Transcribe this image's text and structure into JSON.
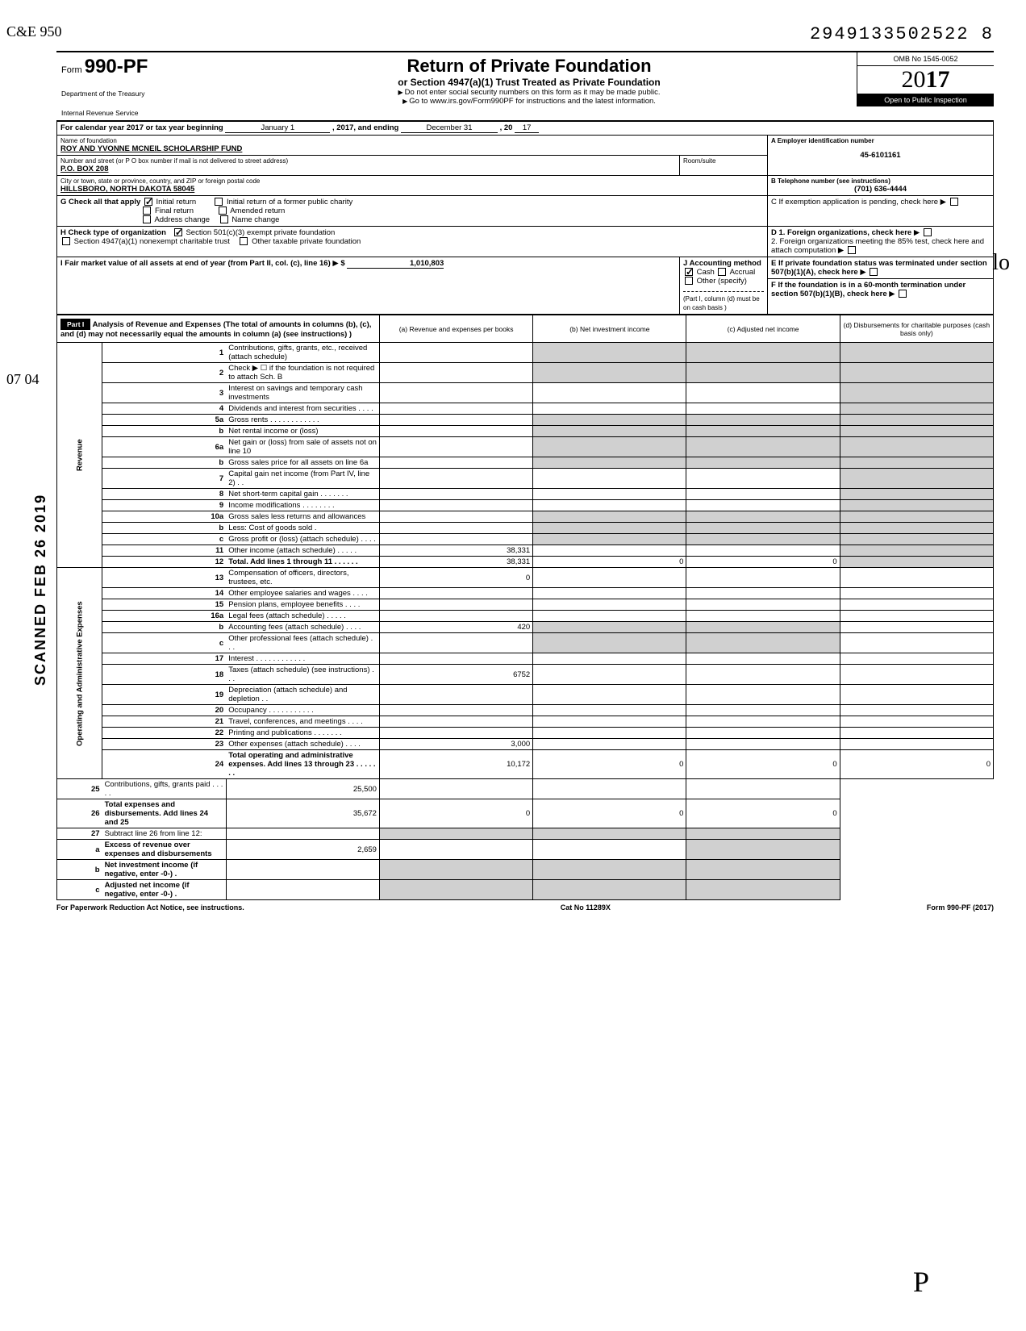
{
  "annotations": {
    "top_left": "C&E\n950",
    "side": "07\n04",
    "side_text": "SCANNED FEB 26 2019",
    "sig_bottom": "P",
    "sig_right": "lo"
  },
  "doc_id": "2949133502522 8",
  "header": {
    "form_prefix": "Form",
    "form_number": "990-PF",
    "dept1": "Department of the Treasury",
    "dept2": "Internal Revenue Service",
    "title": "Return of Private Foundation",
    "subtitle": "or Section 4947(a)(1) Trust Treated as Private Foundation",
    "note1": "Do not enter social security numbers on this form as it may be made public.",
    "note2": "Go to www.irs.gov/Form990PF for instructions and the latest information.",
    "omb": "OMB No 1545-0052",
    "year_prefix": "20",
    "year_suffix": "17",
    "open": "Open to Public Inspection"
  },
  "cal_line": {
    "prefix": "For calendar year 2017 or tax year beginning",
    "begin": "January 1",
    "mid": ", 2017, and ending",
    "end": "December 31",
    "yy_prefix": ", 20",
    "yy": "17"
  },
  "info": {
    "name_label": "Name of foundation",
    "name": "ROY AND YVONNE MCNEIL SCHOLARSHIP FUND",
    "ein_label": "A  Employer identification number",
    "ein": "45-6101161",
    "street_label": "Number and street (or P O box number if mail is not delivered to street address)",
    "street": "P.O. BOX 208",
    "room_label": "Room/suite",
    "phone_label": "B  Telephone number (see instructions)",
    "phone": "(701) 636-4444",
    "city_label": "City or town, state or province, country, and ZIP or foreign postal code",
    "city": "HILLSBORO, NORTH DAKOTA 58045",
    "c_label": "C  If exemption application is pending, check here"
  },
  "g": {
    "label": "G   Check all that apply",
    "opts": [
      "Initial return",
      "Final return",
      "Address change",
      "Initial return of a former public charity",
      "Amended return",
      "Name change"
    ]
  },
  "h": {
    "label": "H   Check type of organization",
    "opt1": "Section 501(c)(3) exempt private foundation",
    "opt2": "Section 4947(a)(1) nonexempt charitable trust",
    "opt3": "Other taxable private foundation"
  },
  "i": {
    "label": "I    Fair market value of all assets at end of year (from Part II, col. (c), line 16)",
    "arrow": "$",
    "value": "1,010,803"
  },
  "j": {
    "label": "J   Accounting method",
    "opt1": "Cash",
    "opt2": "Accrual",
    "opt3": "Other (specify)",
    "note": "(Part I, column (d) must be on cash basis )"
  },
  "d": {
    "d1": "D  1. Foreign organizations, check here",
    "d2": "2. Foreign organizations meeting the 85% test, check here and attach computation"
  },
  "e": {
    "label": "E   If private foundation status was terminated under section 507(b)(1)(A), check here"
  },
  "f": {
    "label": "F   If the foundation is in a 60-month termination under section 507(b)(1)(B), check here"
  },
  "part1": {
    "header": "Part I",
    "desc": "Analysis of Revenue and Expenses (The total of amounts in columns (b), (c), and (d) may not necessarily equal the amounts in column (a) (see instructions) )",
    "col_a": "(a) Revenue and expenses per books",
    "col_b": "(b) Net investment income",
    "col_c": "(c) Adjusted net income",
    "col_d": "(d) Disbursements for charitable purposes (cash basis only)"
  },
  "sections": {
    "revenue": "Revenue",
    "opexp": "Operating and Administrative Expenses"
  },
  "rows": [
    {
      "n": "1",
      "d": "Contributions, gifts, grants, etc., received (attach schedule)"
    },
    {
      "n": "2",
      "d": "Check ▶ ☐ if the foundation is not required to attach Sch. B"
    },
    {
      "n": "3",
      "d": "Interest on savings and temporary cash investments"
    },
    {
      "n": "4",
      "d": "Dividends and interest from securities   .   .   .   ."
    },
    {
      "n": "5a",
      "d": "Gross rents  .   .   .   .   .   .   .   .   .   .   .   ."
    },
    {
      "n": "b",
      "d": "Net rental income or (loss)"
    },
    {
      "n": "6a",
      "d": "Net gain or (loss) from sale of assets not on line 10"
    },
    {
      "n": "b",
      "d": "Gross sales price for all assets on line 6a"
    },
    {
      "n": "7",
      "d": "Capital gain net income (from Part IV, line 2)   .   ."
    },
    {
      "n": "8",
      "d": "Net short-term capital gain  .   .   .   .   .   .   ."
    },
    {
      "n": "9",
      "d": "Income modifications   .   .   .   .   .   .   .   ."
    },
    {
      "n": "10a",
      "d": "Gross sales less returns and allowances"
    },
    {
      "n": "b",
      "d": "Less: Cost of goods sold   ."
    },
    {
      "n": "c",
      "d": "Gross profit or (loss) (attach schedule)   .   .   .   ."
    },
    {
      "n": "11",
      "d": "Other income (attach schedule)   .   .   .   .   .",
      "a": "38,331"
    },
    {
      "n": "12",
      "d": "Total. Add lines 1 through 11  .   .   .   .   .   .",
      "a": "38,331",
      "b": "0",
      "c": "0",
      "bold": true
    },
    {
      "n": "13",
      "d": "Compensation of officers, directors, trustees, etc.",
      "a": "0"
    },
    {
      "n": "14",
      "d": "Other employee salaries and wages  .   .   .   ."
    },
    {
      "n": "15",
      "d": "Pension plans, employee benefits   .   .   .   ."
    },
    {
      "n": "16a",
      "d": "Legal fees (attach schedule)   .   .   .   .   ."
    },
    {
      "n": "b",
      "d": "Accounting fees (attach schedule)   .   .   .   .",
      "a": "420"
    },
    {
      "n": "c",
      "d": "Other professional fees (attach schedule)  .   .   ."
    },
    {
      "n": "17",
      "d": "Interest   .   .   .   .   .   .   .   .   .   .   .   ."
    },
    {
      "n": "18",
      "d": "Taxes (attach schedule) (see instructions)   .   .   .",
      "a": "6752"
    },
    {
      "n": "19",
      "d": "Depreciation (attach schedule) and depletion  .   ."
    },
    {
      "n": "20",
      "d": "Occupancy  .   .   .   .   .   .   .   .   .   .   ."
    },
    {
      "n": "21",
      "d": "Travel, conferences, and meetings   .   .   .   ."
    },
    {
      "n": "22",
      "d": "Printing and publications   .   .   .   .   .   .   ."
    },
    {
      "n": "23",
      "d": "Other expenses (attach schedule)   .   .   .   .",
      "a": "3,000"
    },
    {
      "n": "24",
      "d": "Total operating and administrative expenses. Add lines 13 through 23  .   .   .   .   .   .   .",
      "a": "10,172",
      "b": "0",
      "c": "0",
      "d_": "0",
      "bold": true
    },
    {
      "n": "25",
      "d": "Contributions, gifts, grants paid   .   .   .   .   .",
      "a": "25,500"
    },
    {
      "n": "26",
      "d": "Total expenses and disbursements. Add lines 24 and 25",
      "a": "35,672",
      "b": "0",
      "c": "0",
      "d_": "0",
      "bold": true
    },
    {
      "n": "27",
      "d": "Subtract line 26 from line 12:"
    },
    {
      "n": "a",
      "d": "Excess of revenue over expenses and disbursements",
      "a": "2,659",
      "bold": true
    },
    {
      "n": "b",
      "d": "Net investment income (if negative, enter -0-)   .",
      "bold": true
    },
    {
      "n": "c",
      "d": "Adjusted net income (if negative, enter -0-)   .",
      "bold": true
    }
  ],
  "footer": {
    "left": "For Paperwork Reduction Act Notice, see instructions.",
    "center": "Cat No 11289X",
    "right": "Form 990-PF (2017)"
  }
}
